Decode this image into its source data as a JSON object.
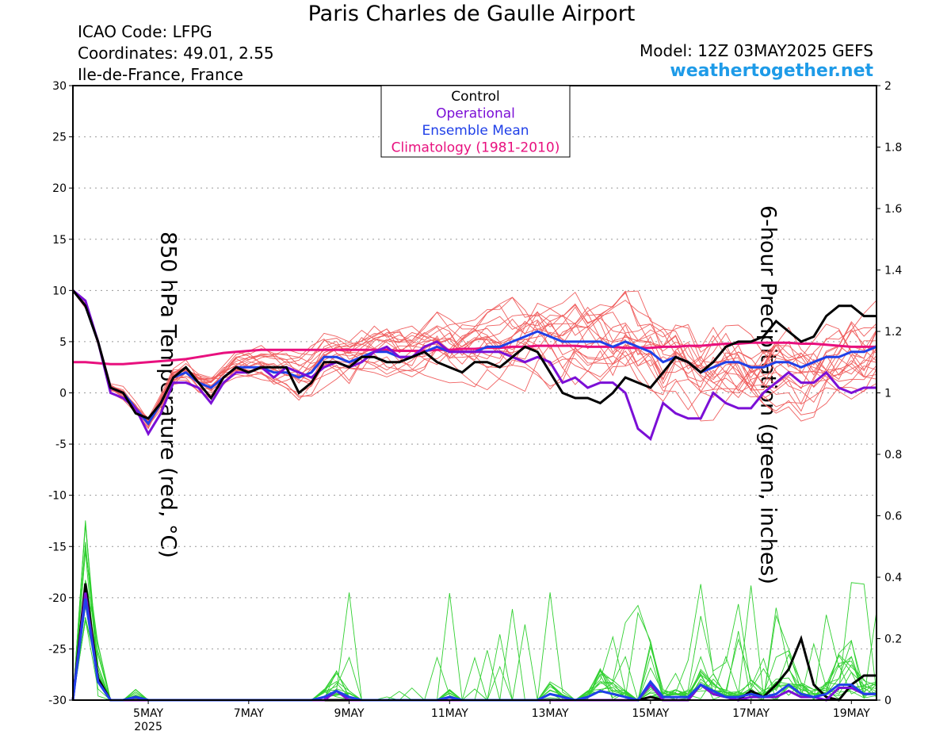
{
  "header": {
    "title": "Paris Charles de Gaulle Airport",
    "icao": "ICAO Code: LFPG",
    "coordinates": "Coordinates: 49.01, 2.55",
    "region": "Ile-de-France, France",
    "model": "Model: 12Z 03MAY2025 GEFS",
    "site": "weathertogether.net"
  },
  "colors": {
    "control": "#000000",
    "operational": "#7b0fd6",
    "ensemble_mean": "#2040e8",
    "climatology": "#e8107e",
    "members_temp": "#f06060",
    "members_precip": "#30d030",
    "site": "#1e9be8"
  },
  "chart_data": {
    "type": "line",
    "xlabel": "",
    "ylabel": "850 hPa Temperature (red, °C)",
    "ylabel_right": "6-hour Precipitation (green, inches)",
    "ylim": [
      -30,
      30
    ],
    "ylim_right": [
      0,
      2
    ],
    "yticks": [
      "30",
      "25",
      "20",
      "15",
      "10",
      "5",
      "0",
      "-5",
      "-10",
      "-15",
      "-20",
      "-25",
      "-30"
    ],
    "yticks_right": [
      "2",
      "1.8",
      "1.6",
      "1.4",
      "1.2",
      "1",
      "0.8",
      "0.6",
      "0.4",
      "0.2",
      "0"
    ],
    "x_tick_labels": [
      "5MAY",
      "7MAY",
      "9MAY",
      "11MAY",
      "13MAY",
      "15MAY",
      "17MAY",
      "19MAY"
    ],
    "x_year_label": "2025",
    "xlim_days": [
      3.5,
      19.5
    ],
    "legend": [
      "Control",
      "Operational",
      "Ensemble Mean",
      "Climatology (1981-2010)"
    ],
    "legend_position": "top-center",
    "grid": true,
    "temp_x": [
      3.5,
      3.75,
      4,
      4.25,
      4.5,
      4.75,
      5,
      5.25,
      5.5,
      5.75,
      6,
      6.25,
      6.5,
      6.75,
      7,
      7.25,
      7.5,
      7.75,
      8,
      8.25,
      8.5,
      8.75,
      9,
      9.25,
      9.5,
      9.75,
      10,
      10.25,
      10.5,
      10.75,
      11,
      11.25,
      11.5,
      11.75,
      12,
      12.25,
      12.5,
      12.75,
      13,
      13.25,
      13.5,
      13.75,
      14,
      14.25,
      14.5,
      14.75,
      15,
      15.25,
      15.5,
      15.75,
      16,
      16.25,
      16.5,
      16.75,
      17,
      17.25,
      17.5,
      17.75,
      18,
      18.25,
      18.5,
      18.75,
      19,
      19.25,
      19.5
    ],
    "series": [
      {
        "name": "Control",
        "values": [
          10,
          8.5,
          5,
          0.5,
          0,
          -2,
          -2.5,
          -1,
          1.5,
          2.5,
          1,
          -0.5,
          1.5,
          2.5,
          2,
          2.5,
          2.5,
          2.5,
          0,
          1,
          3,
          3,
          2.5,
          3.5,
          3.5,
          3,
          3,
          3.5,
          4,
          3,
          2.5,
          2,
          3,
          3,
          2.5,
          3.5,
          4.5,
          4,
          2,
          0,
          -0.5,
          -0.5,
          -1,
          0,
          1.5,
          1,
          0.5,
          2,
          3.5,
          3,
          2,
          3,
          4.5,
          5,
          5,
          5.5,
          7,
          6,
          5,
          5.5,
          7.5,
          8.5,
          8.5,
          7.5,
          7.5
        ]
      },
      {
        "name": "Operational",
        "values": [
          10,
          9,
          5,
          0,
          -0.5,
          -1.5,
          -4,
          -2,
          1,
          1,
          0.5,
          -1,
          1,
          2,
          2,
          2.5,
          1.5,
          2.5,
          2,
          1.5,
          2.5,
          3,
          2.5,
          3,
          4,
          4.5,
          3.5,
          3.5,
          4.5,
          5,
          4,
          4,
          4,
          4,
          4,
          3.5,
          3,
          3.5,
          3,
          1,
          1.5,
          0.5,
          1,
          1,
          0,
          -3.5,
          -4.5,
          -1,
          -2,
          -2.5,
          -2.5,
          0,
          -1,
          -1.5,
          -1.5,
          0,
          1,
          2,
          1,
          1,
          2,
          0.5,
          0,
          0.5,
          0.5
        ]
      },
      {
        "name": "Ensemble Mean",
        "values": [
          10,
          8.5,
          5,
          0.5,
          0,
          -1.5,
          -3,
          -1,
          1.5,
          2,
          1,
          0.5,
          1.5,
          2.5,
          2.5,
          2.5,
          2,
          2,
          1.5,
          2,
          3.5,
          3.5,
          3,
          3.5,
          4,
          4,
          3.5,
          3.5,
          4,
          4.5,
          4,
          4,
          4,
          4.5,
          4.5,
          5,
          5.5,
          6,
          5.5,
          5,
          5,
          5,
          5,
          4.5,
          5,
          4.5,
          4,
          3,
          3.5,
          3,
          2,
          2.5,
          3,
          3,
          2.5,
          2.5,
          3,
          3,
          2.5,
          3,
          3.5,
          3.5,
          4,
          4,
          4.5
        ]
      },
      {
        "name": "Climatology (1981-2010)",
        "values": [
          3,
          3,
          2.9,
          2.8,
          2.8,
          2.9,
          3,
          3.1,
          3.2,
          3.3,
          3.5,
          3.7,
          3.9,
          4,
          4.1,
          4.2,
          4.2,
          4.2,
          4.2,
          4.2,
          4.2,
          4.2,
          4.2,
          4.2,
          4.2,
          4.2,
          4.1,
          4.1,
          4.1,
          4.2,
          4.2,
          4.3,
          4.3,
          4.4,
          4.4,
          4.5,
          4.5,
          4.6,
          4.6,
          4.6,
          4.6,
          4.5,
          4.5,
          4.5,
          4.4,
          4.4,
          4.4,
          4.5,
          4.5,
          4.6,
          4.6,
          4.7,
          4.8,
          4.8,
          4.9,
          4.9,
          4.9,
          4.9,
          4.8,
          4.8,
          4.7,
          4.6,
          4.5,
          4.5,
          4.5
        ]
      }
    ],
    "precip_x": [
      3.5,
      3.75,
      4,
      4.25,
      4.5,
      4.75,
      5,
      5.25,
      5.5,
      5.75,
      6,
      6.25,
      6.5,
      6.75,
      7,
      7.25,
      7.5,
      7.75,
      8,
      8.25,
      8.5,
      8.75,
      9,
      9.25,
      9.5,
      9.75,
      10,
      10.25,
      10.5,
      10.75,
      11,
      11.25,
      11.5,
      11.75,
      12,
      12.25,
      12.5,
      12.75,
      13,
      13.25,
      13.5,
      13.75,
      14,
      14.25,
      14.5,
      14.75,
      15,
      15.25,
      15.5,
      15.75,
      16,
      16.25,
      16.5,
      16.75,
      17,
      17.25,
      17.5,
      17.75,
      18,
      18.25,
      18.5,
      18.75,
      19,
      19.25,
      19.5
    ],
    "precip_series": [
      {
        "name": "Control",
        "values": [
          0,
          0.38,
          0.07,
          0,
          0,
          0.01,
          0,
          0,
          0,
          0,
          0,
          0,
          0,
          0,
          0,
          0,
          0,
          0,
          0,
          0,
          0,
          0,
          0,
          0,
          0,
          0,
          0,
          0,
          0,
          0,
          0,
          0,
          0,
          0,
          0,
          0,
          0,
          0,
          0,
          0,
          0,
          0,
          0,
          0,
          0,
          0,
          0.01,
          0,
          0,
          0,
          0.05,
          0.02,
          0.01,
          0,
          0.03,
          0.01,
          0.05,
          0.1,
          0.2,
          0.05,
          0.01,
          0,
          0.05,
          0.08,
          0.08
        ]
      },
      {
        "name": "Operational",
        "values": [
          0,
          0.35,
          0.06,
          0,
          0,
          0,
          0,
          0,
          0,
          0,
          0,
          0,
          0,
          0,
          0,
          0,
          0,
          0,
          0,
          0,
          0,
          0.03,
          0,
          0,
          0,
          0,
          0,
          0,
          0,
          0,
          0,
          0,
          0,
          0,
          0,
          0,
          0,
          0,
          0,
          0,
          0,
          0,
          0,
          0,
          0,
          0,
          0.05,
          0,
          0,
          0,
          0.05,
          0.02,
          0.01,
          0,
          0.01,
          0.01,
          0.01,
          0.03,
          0.01,
          0.01,
          0,
          0.04,
          0.04,
          0.02,
          0.02
        ]
      },
      {
        "name": "Ensemble Mean",
        "values": [
          0,
          0.33,
          0.06,
          0,
          0,
          0.01,
          0,
          0,
          0,
          0,
          0,
          0,
          0,
          0,
          0,
          0,
          0,
          0,
          0,
          0,
          0.01,
          0.03,
          0.01,
          0,
          0,
          0,
          0,
          0,
          0,
          0,
          0.01,
          0,
          0,
          0,
          0,
          0,
          0,
          0,
          0.02,
          0.01,
          0,
          0.01,
          0.03,
          0.02,
          0.01,
          0,
          0.06,
          0.01,
          0.01,
          0.01,
          0.05,
          0.03,
          0.01,
          0.01,
          0.02,
          0.01,
          0.02,
          0.05,
          0.02,
          0.01,
          0.02,
          0.05,
          0.05,
          0.02,
          0.02
        ]
      }
    ]
  }
}
